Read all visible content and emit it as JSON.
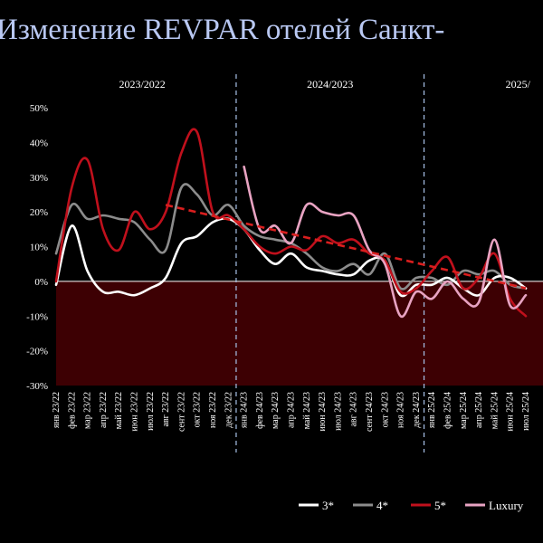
{
  "chart_data": {
    "type": "line",
    "title": "Изменение REVPAR отелей Санкт-",
    "periods": [
      "2023/2022",
      "2024/2023",
      "2025/"
    ],
    "ylim": [
      -30,
      50
    ],
    "yticks": [
      50,
      40,
      30,
      20,
      10,
      0,
      -10,
      -20,
      -30
    ],
    "ytick_labels": [
      "50%",
      "40%",
      "30%",
      "20%",
      "10%",
      "0%",
      "-10%",
      "-20%",
      "-30%"
    ],
    "categories": [
      "янв 23/22",
      "фев 23/22",
      "мар 23/22",
      "апр 23/22",
      "май 23/22",
      "июн 23/22",
      "июл 23/22",
      "авг 23/22",
      "сент 23/22",
      "окт 23/22",
      "ноя 23/22",
      "дек 23/22",
      "янв 24/23",
      "фев 24/23",
      "мар 24/23",
      "апр 24/23",
      "май 24/23",
      "июн 24/23",
      "июл 24/23",
      "авг 24/23",
      "сент 24/23",
      "окт 24/23",
      "ноя 24/23",
      "дек 24/23",
      "янв 25/24",
      "фев 25/24",
      "мар 25/24",
      "апр 25/24",
      "май 25/24",
      "июн 25/24",
      "июл 25/24"
    ],
    "series": [
      {
        "name": "3*",
        "color": "#ffffff",
        "values": [
          -1,
          16,
          3,
          -3,
          -3,
          -4,
          -2,
          1,
          11,
          13,
          17,
          18,
          15,
          9,
          5,
          8,
          4,
          3,
          2,
          2,
          6,
          6,
          -4,
          -1,
          -1,
          1,
          -2,
          -4,
          1,
          1,
          -2
        ]
      },
      {
        "name": "4*",
        "color": "#8c8c8c",
        "values": [
          8,
          22,
          18,
          19,
          18,
          17,
          12,
          9,
          27,
          25,
          19,
          22,
          16,
          13,
          12,
          11,
          8,
          4,
          3,
          5,
          2,
          8,
          -2,
          1,
          1,
          -1,
          3,
          2,
          3,
          -1,
          -2
        ]
      },
      {
        "name": "5*",
        "color": "#c0101c",
        "values": [
          0,
          27,
          35,
          15,
          9,
          20,
          15,
          20,
          37,
          43,
          20,
          19,
          15,
          10,
          8,
          10,
          9,
          13,
          11,
          12,
          8,
          6,
          -3,
          -2,
          3,
          7,
          -2,
          1,
          8,
          -5,
          -10
        ]
      },
      {
        "name": "Luxury",
        "color": "#e8a3c2",
        "values": [
          null,
          null,
          null,
          null,
          null,
          null,
          null,
          null,
          null,
          null,
          null,
          null,
          33,
          15,
          16,
          11,
          22,
          20,
          19,
          19,
          9,
          5,
          -10,
          -3,
          -5,
          0,
          -5,
          -6,
          12,
          -7,
          -4
        ]
      }
    ],
    "trend": {
      "color": "#d91e1e",
      "from": {
        "x": "авг 23/22",
        "y": 22
      },
      "to": {
        "x": "июл 25/24",
        "y": -2
      }
    },
    "legend": [
      "3*",
      "4*",
      "5*",
      "Luxury"
    ],
    "legend_position": "bottom-right",
    "negative_fill_color": "#3d0003",
    "divider_color": "#a9c3ea",
    "grid": false
  }
}
